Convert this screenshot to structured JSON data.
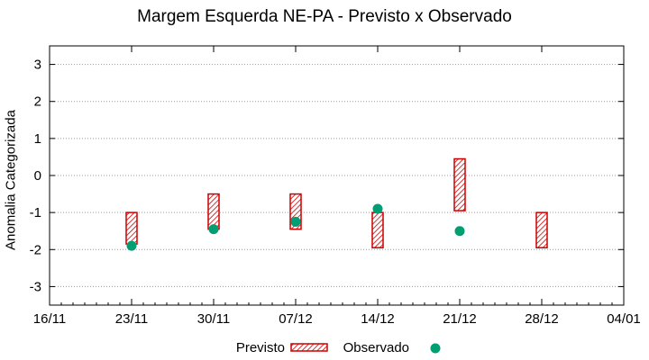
{
  "chart_data": {
    "type": "scatter",
    "title": "Margem Esquerda NE-PA - Previsto x Observado",
    "xlabel": "",
    "ylabel": "Anomalia Categorizada",
    "ylim": [
      -3.5,
      3.5
    ],
    "yticks": [
      "-3",
      "-2",
      "-1",
      "0",
      "1",
      "2",
      "3"
    ],
    "ytick_values": [
      -3,
      -2,
      -1,
      0,
      1,
      2,
      3
    ],
    "xlim": [
      "2014-11-16",
      "2015-01-04"
    ],
    "xticks": [
      "16/11",
      "23/11",
      "30/11",
      "07/12",
      "14/12",
      "21/12",
      "28/12",
      "04/01"
    ],
    "xtick_dates": [
      "2014-11-16",
      "2014-11-23",
      "2014-11-30",
      "2014-12-07",
      "2014-12-14",
      "2014-12-21",
      "2014-12-28",
      "2015-01-04"
    ],
    "grid": true,
    "legend_position": "bottom",
    "series": [
      {
        "name": "Previsto",
        "kind": "range",
        "color": "#cc0000",
        "points": [
          {
            "x": "2014-11-23",
            "low": -1.85,
            "high": -1.0
          },
          {
            "x": "2014-11-30",
            "low": -1.45,
            "high": -0.5
          },
          {
            "x": "2014-12-07",
            "low": -1.45,
            "high": -0.5
          },
          {
            "x": "2014-12-14",
            "low": -1.95,
            "high": -1.0
          },
          {
            "x": "2014-12-21",
            "low": -0.95,
            "high": 0.45
          },
          {
            "x": "2014-12-28",
            "low": -1.95,
            "high": -1.0
          }
        ]
      },
      {
        "name": "Observado",
        "kind": "point",
        "color": "#009e73",
        "points": [
          {
            "x": "2014-11-23",
            "y": -1.9
          },
          {
            "x": "2014-11-30",
            "y": -1.45
          },
          {
            "x": "2014-12-07",
            "y": -1.25
          },
          {
            "x": "2014-12-14",
            "y": -0.9
          },
          {
            "x": "2014-12-21",
            "y": -1.5
          }
        ]
      }
    ]
  }
}
